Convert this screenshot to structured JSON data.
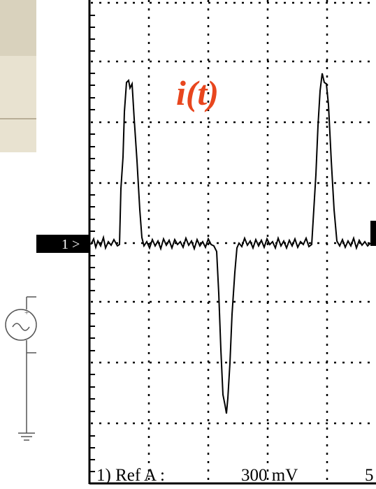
{
  "trace_label": "i(t)",
  "channel_marker": "1 >",
  "status": {
    "reference": "1) Ref A :",
    "scale": "300 mV",
    "extra": "5"
  }
}
